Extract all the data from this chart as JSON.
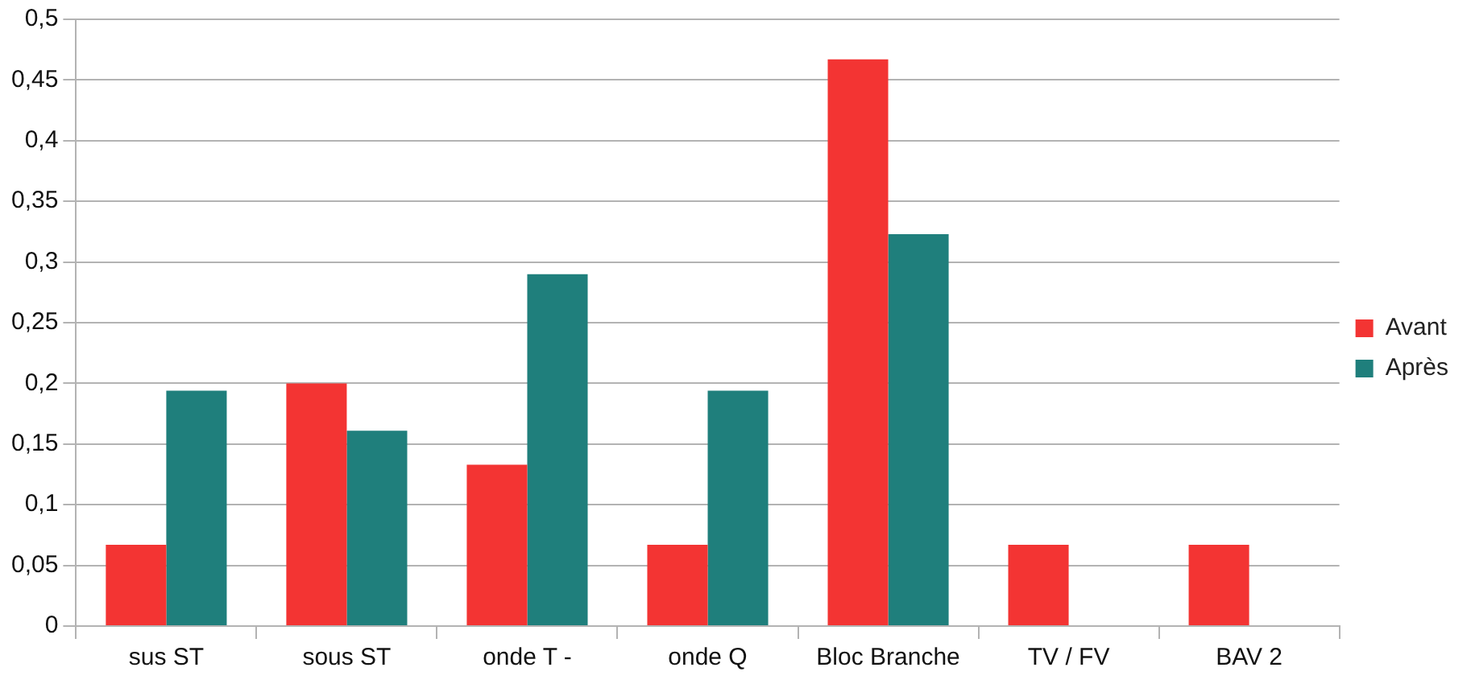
{
  "chart_data": {
    "type": "bar",
    "categories": [
      "sus ST",
      "sous ST",
      "onde T -",
      "onde Q",
      "Bloc Branche",
      "TV / FV",
      "BAV 2"
    ],
    "series": [
      {
        "name": "Avant",
        "color": "#f33433",
        "values": [
          0.067,
          0.2,
          0.133,
          0.067,
          0.467,
          0.067,
          0.067
        ]
      },
      {
        "name": "Après",
        "color": "#1f7f7c",
        "values": [
          0.194,
          0.161,
          0.29,
          0.194,
          0.323,
          0,
          0
        ]
      }
    ],
    "ylim": [
      0,
      0.5
    ],
    "yticks": [
      0,
      {
        "value": 0.05,
        "label": "0,05"
      },
      {
        "value": 0.1,
        "label": "0,1"
      },
      {
        "value": 0.15,
        "label": "0,15"
      },
      {
        "value": 0.2,
        "label": "0,2"
      },
      {
        "value": 0.25,
        "label": "0,25"
      },
      {
        "value": 0.3,
        "label": "0,3"
      },
      {
        "value": 0.35,
        "label": "0,35"
      },
      {
        "value": 0.4,
        "label": "0,4"
      },
      {
        "value": 0.45,
        "label": "0,45"
      },
      {
        "value": 0.5,
        "label": "0,5"
      }
    ],
    "grid": "y",
    "legend": "right"
  }
}
